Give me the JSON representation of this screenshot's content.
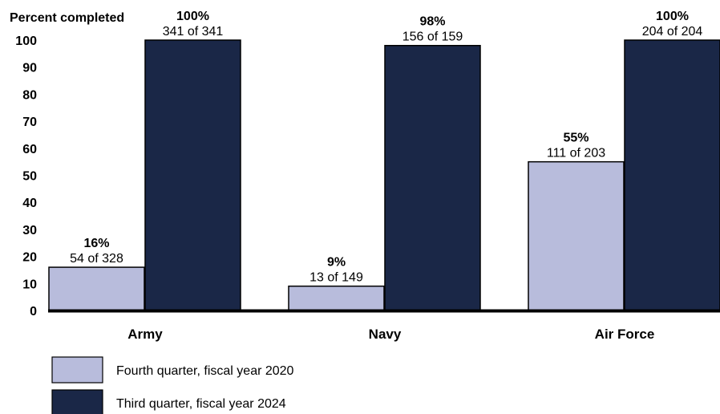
{
  "chart_data": {
    "type": "bar",
    "ylabel": "Percent completed",
    "ylim": [
      0,
      100
    ],
    "yticks": [
      0,
      10,
      20,
      30,
      40,
      50,
      60,
      70,
      80,
      90,
      100
    ],
    "categories": [
      "Army",
      "Navy",
      "Air Force"
    ],
    "legend_position": "bottom-left",
    "series": [
      {
        "name": "Fourth quarter, fiscal year 2020",
        "color": "#b8bcdc",
        "values": [
          16,
          9,
          55
        ],
        "pct_labels": [
          "16%",
          "9%",
          "55%"
        ],
        "count_labels": [
          "54 of 328",
          "13 of 149",
          "111 of 203"
        ]
      },
      {
        "name": "Third quarter, fiscal year 2024",
        "color": "#1a2747",
        "values": [
          100,
          98,
          100
        ],
        "pct_labels": [
          "100%",
          "98%",
          "100%"
        ],
        "count_labels": [
          "341 of 341",
          "156 of 159",
          "204 of 204"
        ]
      }
    ]
  }
}
